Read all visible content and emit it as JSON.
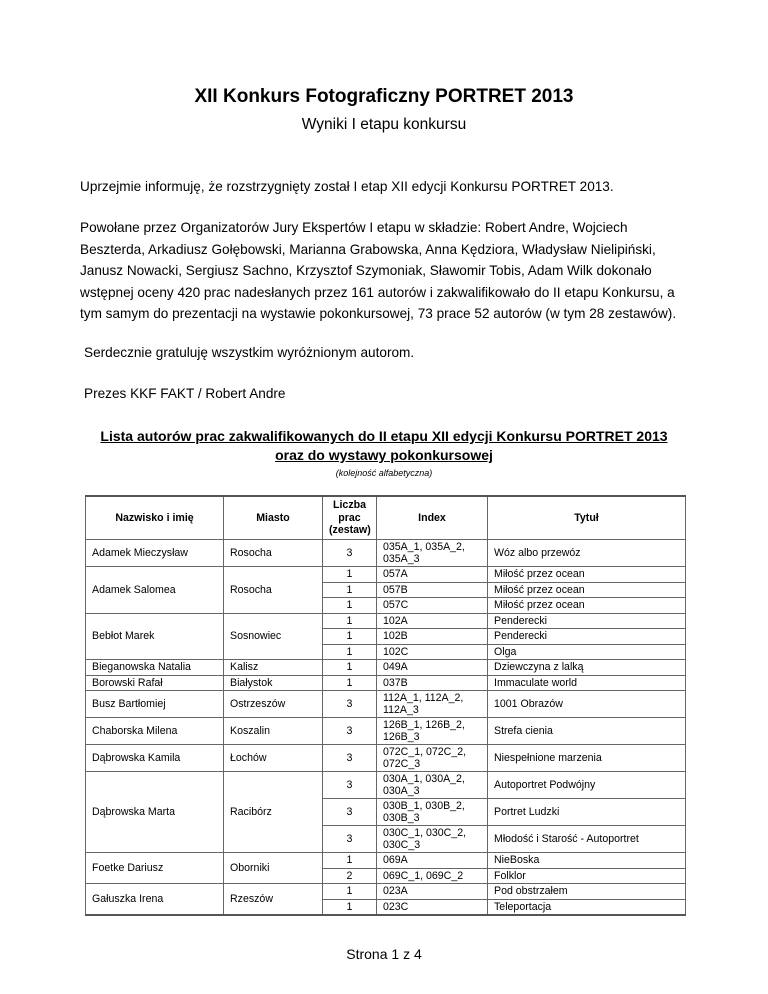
{
  "title": "XII Konkurs Fotograficzny PORTRET 2013",
  "subtitle": "Wyniki I etapu konkursu",
  "paragraphs": [
    "Uprzejmie informuję, że rozstrzygnięty został I etap XII edycji Konkursu PORTRET 2013.",
    "Powołane przez Organizatorów Jury Ekspertów I etapu w składzie: Robert Andre, Wojciech Beszterda, Arkadiusz Gołębowski, Marianna Grabowska, Anna Kędziora, Władysław Nielipiński, Janusz Nowacki, Sergiusz Sachno, Krzysztof Szymoniak, Sławomir Tobis, Adam Wilk dokonało wstępnej oceny 420 prac nadesłanych przez 161 autorów i zakwalifikowało do II etapu Konkursu, a tym samym do prezentacji na wystawie pokonkursowej, 73 prace 52 autorów (w tym 28 zestawów).",
    "Serdecznie gratuluję wszystkim wyróżnionym autorom.",
    "Prezes KKF FAKT / Robert Andre"
  ],
  "list_heading": {
    "line1": "Lista autorów prac zakwalifikowanych do II etapu XII edycji Konkursu PORTRET 2013",
    "line2": "oraz do wystawy pokonkursowej"
  },
  "list_note": "(kolejność alfabetyczna)",
  "table": {
    "headers": [
      "Nazwisko i imię",
      "Miasto",
      "Liczba prac (zestaw)",
      "Index",
      "Tytuł"
    ],
    "groups": [
      {
        "name": "Adamek Mieczysław",
        "city": "Rosocha",
        "works": [
          {
            "count": "3",
            "index": "035A_1, 035A_2, 035A_3",
            "title": "Wóz albo przewóz",
            "lines": 2
          }
        ]
      },
      {
        "name": "Adamek Salomea",
        "city": "Rosocha",
        "works": [
          {
            "count": "1",
            "index": "057A",
            "title": "Miłość przez ocean"
          },
          {
            "count": "1",
            "index": "057B",
            "title": "Miłość przez ocean"
          },
          {
            "count": "1",
            "index": "057C",
            "title": "Miłość przez ocean"
          }
        ]
      },
      {
        "name": "Bebłot Marek",
        "city": "Sosnowiec",
        "works": [
          {
            "count": "1",
            "index": "102A",
            "title": "Penderecki"
          },
          {
            "count": "1",
            "index": "102B",
            "title": "Penderecki"
          },
          {
            "count": "1",
            "index": "102C",
            "title": "Olga"
          }
        ]
      },
      {
        "name": "Bieganowska Natalia",
        "city": "Kalisz",
        "works": [
          {
            "count": "1",
            "index": "049A",
            "title": "Dziewczyna z lalką"
          }
        ]
      },
      {
        "name": "Borowski Rafał",
        "city": "Białystok",
        "works": [
          {
            "count": "1",
            "index": "037B",
            "title": "Immaculate world"
          }
        ]
      },
      {
        "name": "Busz Bartłomiej",
        "city": "Ostrzeszów",
        "works": [
          {
            "count": "3",
            "index": "112A_1, 112A_2, 112A_3",
            "title": "1001 Obrazów",
            "lines": 2
          }
        ]
      },
      {
        "name": "Chaborska Milena",
        "city": "Koszalin",
        "works": [
          {
            "count": "3",
            "index": "126B_1, 126B_2, 126B_3",
            "title": "Strefa cienia",
            "lines": 2
          }
        ]
      },
      {
        "name": "Dąbrowska Kamila",
        "city": "Łochów",
        "works": [
          {
            "count": "3",
            "index": "072C_1, 072C_2, 072C_3",
            "title": "Niespełnione marzenia",
            "lines": 2
          }
        ]
      },
      {
        "name": "Dąbrowska Marta",
        "city": "Racibórz",
        "works": [
          {
            "count": "3",
            "index": "030A_1, 030A_2, 030A_3",
            "title": "Autoportret Podwójny",
            "lines": 2
          },
          {
            "count": "3",
            "index": "030B_1, 030B_2, 030B_3",
            "title": "Portret Ludzki",
            "lines": 2
          },
          {
            "count": "3",
            "index": "030C_1, 030C_2, 030C_3",
            "title": "Młodość i Starość - Autoportret",
            "lines": 2
          }
        ]
      },
      {
        "name": "Foetke Dariusz",
        "city": "Oborniki",
        "works": [
          {
            "count": "1",
            "index": "069A",
            "title": "NieBoska"
          },
          {
            "count": "2",
            "index": "069C_1, 069C_2",
            "title": "Folklor"
          }
        ]
      },
      {
        "name": "Gałuszka Irena",
        "city": "Rzeszów",
        "works": [
          {
            "count": "1",
            "index": "023A",
            "title": "Pod obstrzałem"
          },
          {
            "count": "1",
            "index": "023C",
            "title": "Teleportacja"
          }
        ]
      }
    ]
  },
  "footer": "Strona 1 z 4"
}
